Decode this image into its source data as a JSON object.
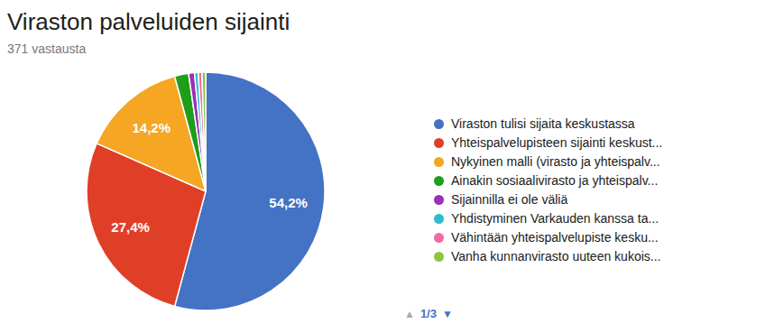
{
  "chart_data": {
    "type": "pie",
    "title": "Viraston palveluiden sijainti",
    "subtitle": "371 vastausta",
    "categories": [
      "Viraston tulisi sijaita keskustassa",
      "Yhteispalvelupisteen sijainti keskust...",
      "Nykyinen malli (virasto ja yhteispalv...",
      "Ainakin sosiaalivirasto ja yhteispalv...",
      "Sijainnilla ei ole väliä",
      "Yhdistyminen Varkauden kanssa ta...",
      "Vähintään yhteispalvelupiste kesku...",
      "Vanha kunnanvirasto uuteen kukois..."
    ],
    "values": [
      54.2,
      27.4,
      14.2,
      1.9,
      0.8,
      0.5,
      0.5,
      0.5
    ],
    "value_labels": [
      "54,2%",
      "27,4%",
      "14,2%",
      null,
      null,
      null,
      null,
      null
    ],
    "colors": [
      "#4472C4",
      "#E03F27",
      "#F5A623",
      "#1E9E1A",
      "#9B2FB5",
      "#2DBBCE",
      "#F06BA1",
      "#8DC63F"
    ],
    "data_labels": true,
    "legend": "right",
    "annotations": [
      "▲",
      "1/3",
      "▼"
    ]
  }
}
